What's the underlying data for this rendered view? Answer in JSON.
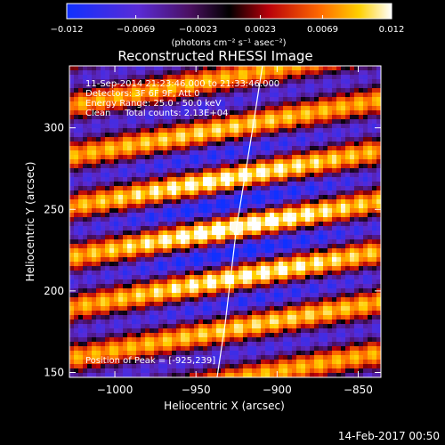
{
  "chart_data": {
    "type": "heatmap",
    "title": "Reconstructed RHESSI Image",
    "info_lines": [
      "11-Sep-2014 21:23:46.000 to 21:33:46.000",
      "Detectors: 3F 6F 9F, Att 0",
      "Energy Range: 25.0 - 50.0 keV",
      "Clean     Total counts: 2.13E+04"
    ],
    "peak_label": "Position of Peak = [-925,239]",
    "xlabel": "Heliocentric X (arcsec)",
    "ylabel": "Heliocentric Y (arcsec)",
    "x_ticks": [
      "−1000",
      "−950",
      "−900",
      "−850"
    ],
    "y_ticks": [
      "150",
      "200",
      "250",
      "300"
    ],
    "xlim": [
      -1028,
      -836
    ],
    "ylim": [
      147,
      338
    ],
    "peak": {
      "x": -925,
      "y": 239
    },
    "limb_points": [
      [
        -937,
        147
      ],
      [
        -932,
        180
      ],
      [
        -925,
        239
      ],
      [
        -915,
        300
      ],
      [
        -909,
        338
      ]
    ],
    "colorbar": {
      "ticks": [
        "−0.012",
        "−0.0069",
        "−0.0023",
        "0.0023",
        "0.0069",
        "0.012"
      ],
      "range": [
        -0.012,
        0.012
      ],
      "unit_label": "(photons cm⁻² s⁻¹ asec⁻²)"
    }
  },
  "footer": {
    "timestamp": "14-Feb-2017 00:50"
  }
}
